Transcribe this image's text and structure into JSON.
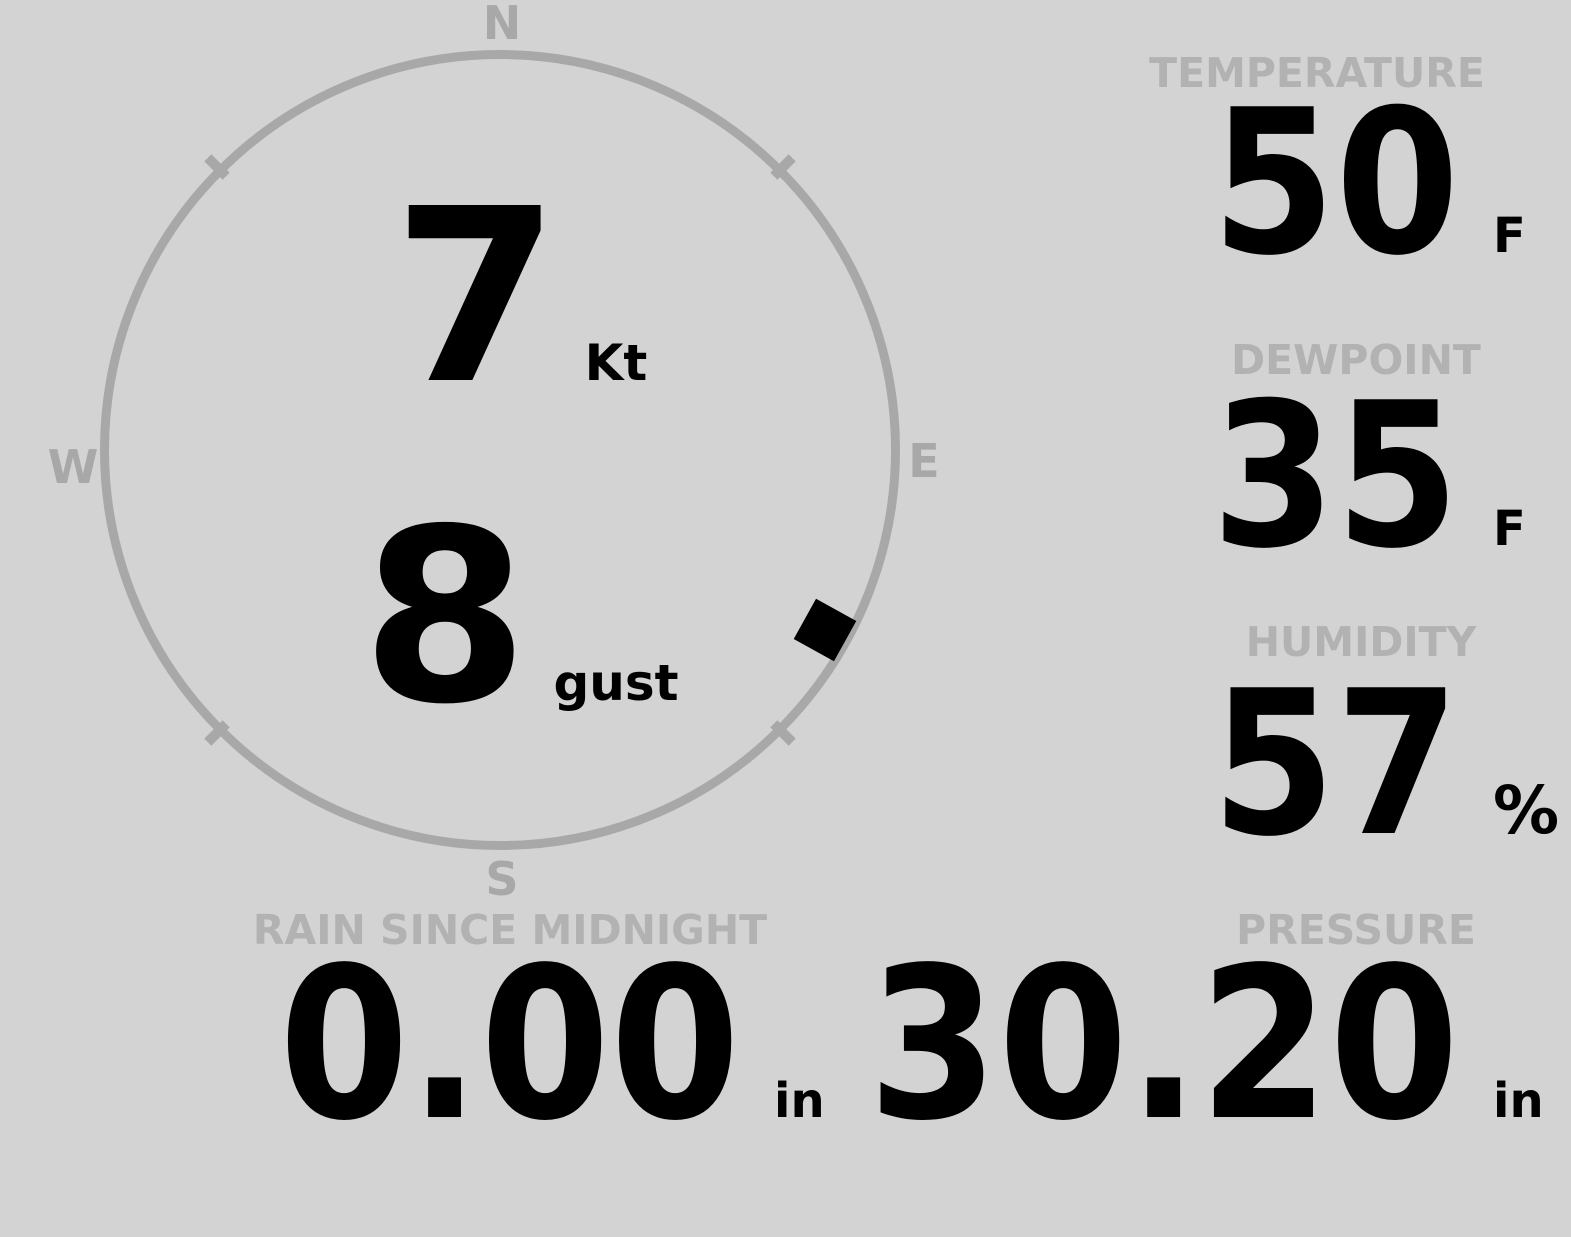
{
  "colors": {
    "background": "#d3d3d3",
    "ring_gray": "#a8a8a8",
    "label_gray": "#b2b2b2",
    "value_black": "#000000"
  },
  "wind": {
    "speed": "7",
    "speed_unit": "Kt",
    "gust": "8",
    "gust_unit": "gust",
    "direction_deg": 119,
    "compass": {
      "north": "N",
      "east": "E",
      "south": "S",
      "west": "W"
    }
  },
  "metrics": {
    "temperature": {
      "label": "TEMPERATURE",
      "value": "50",
      "unit": "F"
    },
    "dewpoint": {
      "label": "DEWPOINT",
      "value": "35",
      "unit": "F"
    },
    "humidity": {
      "label": "HUMIDITY",
      "value": "57",
      "unit": "%"
    },
    "rain_since_midnight": {
      "label": "RAIN SINCE MIDNIGHT",
      "value": "0.00",
      "unit": "in"
    },
    "pressure": {
      "label": "PRESSURE",
      "value": "30.20",
      "unit": "in"
    }
  }
}
